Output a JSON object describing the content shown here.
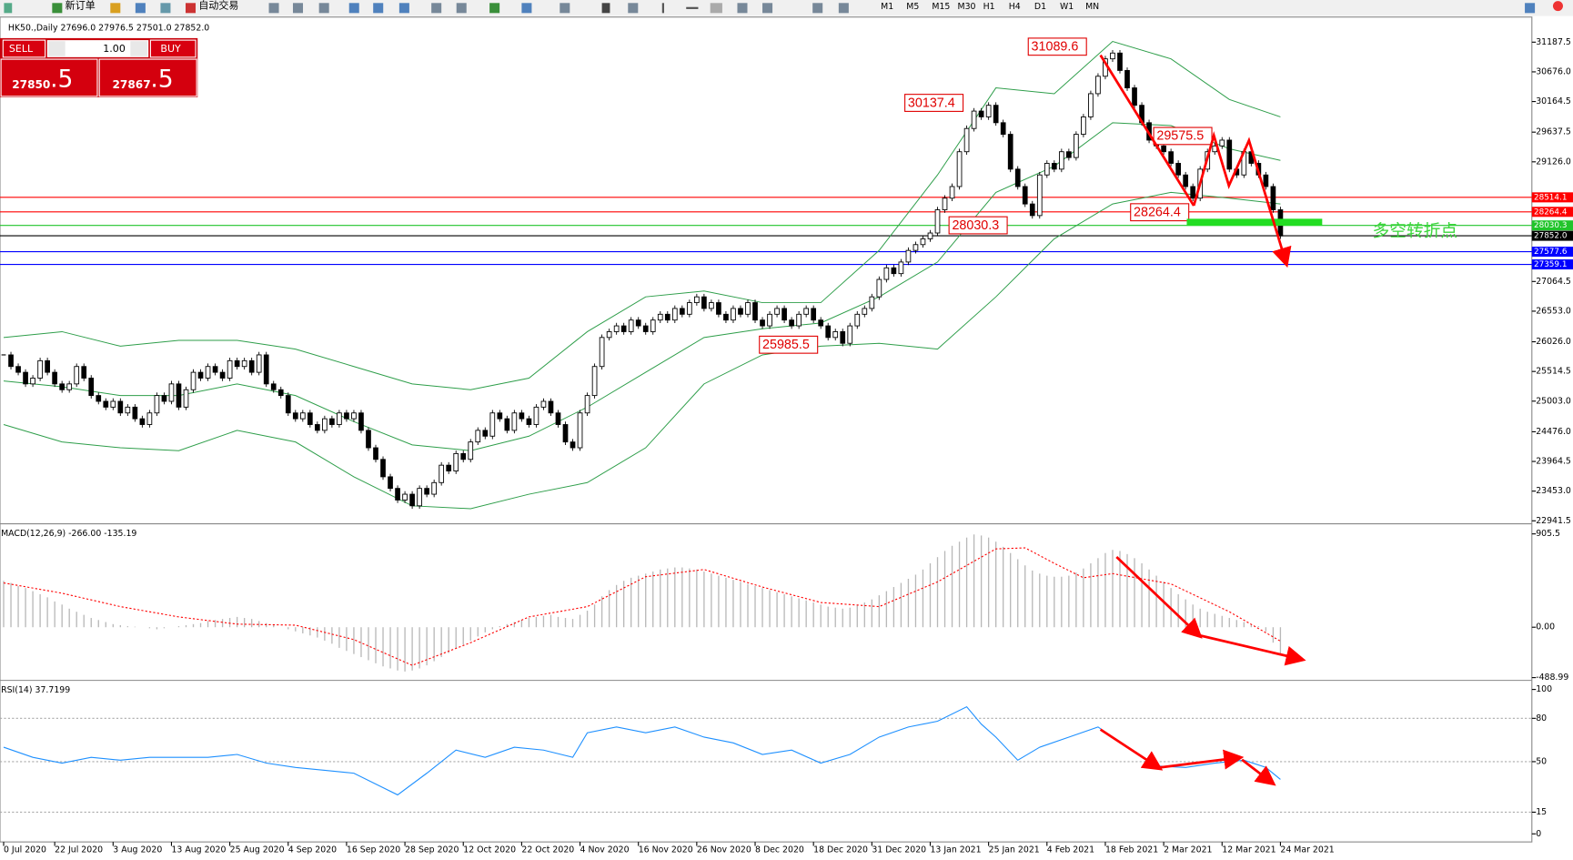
{
  "toolbar": {
    "buttons": [
      "新订单",
      "自动交易"
    ],
    "timeframes": [
      "M1",
      "M5",
      "M15",
      "M30",
      "H1",
      "H4",
      "D1",
      "W1",
      "MN"
    ]
  },
  "trade_panel": {
    "sell": "SELL",
    "lots": "1.00",
    "buy": "BUY",
    "sell_price_main": "27850",
    "sell_price_last": ".5",
    "buy_price_main": "27867",
    "buy_price_last": ".5"
  },
  "annotations": [
    "31089.6",
    "30137.4",
    "29575.5",
    "28264.4",
    "28030.3",
    "25985.5",
    "多空转折点"
  ],
  "chart_data": [
    {
      "type": "candlestick",
      "title": "HK50.,Daily 27696.0 27976.5 27501.0 27852.0",
      "values": [
        25800,
        25600,
        25500,
        25300,
        25400,
        25700,
        25500,
        25300,
        25200,
        25300,
        25600,
        25400,
        25100,
        25000,
        24900,
        25000,
        24800,
        24900,
        24700,
        24600,
        24800,
        25100,
        25000,
        25300,
        24900,
        25200,
        25500,
        25400,
        25600,
        25500,
        25400,
        25700,
        25600,
        25700,
        25500,
        25800,
        25300,
        25200,
        25100,
        24800,
        24700,
        24800,
        24600,
        24500,
        24700,
        24600,
        24800,
        24700,
        24800,
        24500,
        24200,
        24000,
        23700,
        23500,
        23300,
        23400,
        23200,
        23500,
        23400,
        23600,
        23900,
        23800,
        24100,
        24000,
        24300,
        24500,
        24400,
        24800,
        24700,
        24500,
        24800,
        24700,
        24600,
        24900,
        25000,
        24800,
        24600,
        24300,
        24200,
        24800,
        25100,
        25600,
        26100,
        26200,
        26300,
        26200,
        26400,
        26300,
        26200,
        26400,
        26500,
        26400,
        26600,
        26500,
        26700,
        26800,
        26600,
        26700,
        26500,
        26400,
        26600,
        26500,
        26700,
        26400,
        26300,
        26500,
        26600,
        26400,
        26300,
        26500,
        26600,
        26400,
        26300,
        26100,
        26200,
        26000,
        26300,
        26500,
        26600,
        26800,
        27100,
        27300,
        27200,
        27400,
        27600,
        27700,
        27800,
        27900,
        28300,
        28500,
        28700,
        29300,
        29700,
        30000,
        29900,
        30100,
        29800,
        29600,
        29000,
        28700,
        28400,
        28200,
        28900,
        29100,
        29000,
        29300,
        29200,
        29600,
        29900,
        30300,
        30600,
        30900,
        31000,
        30700,
        30400,
        30100,
        29800,
        29500,
        29400,
        29300,
        29100,
        28900,
        28700,
        28500,
        29000,
        29300,
        29400,
        29500,
        29000,
        28900,
        29300,
        29100,
        28900,
        28700,
        28300,
        27850
      ],
      "bands": {
        "x": [
          0,
          8,
          16,
          24,
          32,
          40,
          48,
          56,
          64,
          72,
          80,
          88,
          96,
          104,
          112,
          120,
          128,
          136,
          144,
          152,
          160,
          168,
          175
        ],
        "upper": [
          26100,
          26200,
          25950,
          26050,
          26050,
          25900,
          25600,
          25300,
          25200,
          25400,
          26200,
          26800,
          26900,
          26700,
          26700,
          27600,
          28900,
          30400,
          30300,
          31200,
          30900,
          30200,
          29900
        ],
        "middle": [
          25350,
          25250,
          25100,
          25100,
          25300,
          25100,
          24650,
          24250,
          24150,
          24400,
          24900,
          25500,
          26100,
          26250,
          26350,
          26800,
          27400,
          28600,
          29050,
          29800,
          29750,
          29350,
          29150
        ],
        "lower": [
          24600,
          24300,
          24200,
          24150,
          24500,
          24300,
          23700,
          23200,
          23150,
          23400,
          23600,
          24200,
          25300,
          25800,
          25950,
          26000,
          25900,
          26800,
          27800,
          28400,
          28600,
          28500,
          28400
        ],
        "color": "#2e9e4a"
      },
      "levels": [
        {
          "value": 28514.1,
          "label": "28514.1",
          "color": "#ff0000"
        },
        {
          "value": 28264.4,
          "label": "28264.4",
          "color": "#ff0000"
        },
        {
          "value": 28030.3,
          "label": "28030.3",
          "color": "#21c42b"
        },
        {
          "value": 27852.0,
          "label": "27852.0",
          "color": "#000000"
        },
        {
          "value": 27577.6,
          "label": "27577.6",
          "color": "#0000ff"
        },
        {
          "value": 27359.1,
          "label": "27359.1",
          "color": "#0000ff"
        }
      ],
      "xlim": [
        -0.5,
        175.5
      ],
      "ylim": [
        22907,
        31568
      ],
      "yticks": [
        31187.5,
        {
          "value": 30676.0,
          "label": "30676.0"
        },
        30164.5,
        29637.5,
        {
          "value": 29126.0,
          "label": "29126.0"
        },
        27064.5,
        {
          "value": 26553.0,
          "label": "26553.0"
        },
        {
          "value": 26026.0,
          "label": "26026.0"
        },
        25514.5,
        {
          "value": 25003.0,
          "label": "25003.0"
        },
        {
          "value": 24476.0,
          "label": "24476.0"
        },
        23964.5,
        {
          "value": 23453.0,
          "label": "23453.0"
        },
        22941.5
      ],
      "xticks": [
        {
          "value": 0,
          "label": "0 Jul 2020"
        },
        {
          "value": 7,
          "label": "22 Jul 2020"
        },
        {
          "value": 15,
          "label": "3 Aug 2020"
        },
        {
          "value": 23,
          "label": "13 Aug 2020"
        },
        {
          "value": 31,
          "label": "25 Aug 2020"
        },
        {
          "value": 39,
          "label": "4 Sep 2020"
        },
        {
          "value": 47,
          "label": "16 Sep 2020"
        },
        {
          "value": 55,
          "label": "28 Sep 2020"
        },
        {
          "value": 63,
          "label": "12 Oct 2020"
        },
        {
          "value": 71,
          "label": "22 Oct 2020"
        },
        {
          "value": 79,
          "label": "4 Nov 2020"
        },
        {
          "value": 87,
          "label": "16 Nov 2020"
        },
        {
          "value": 95,
          "label": "26 Nov 2020"
        },
        {
          "value": 103,
          "label": "8 Dec 2020"
        },
        {
          "value": 111,
          "label": "18 Dec 2020"
        },
        {
          "value": 119,
          "label": "31 Dec 2020"
        },
        {
          "value": 127,
          "label": "13 Jan 2021"
        },
        {
          "value": 135,
          "label": "25 Jan 2021"
        },
        {
          "value": 143,
          "label": "4 Feb 2021"
        },
        {
          "value": 151,
          "label": "18 Feb 2021"
        },
        {
          "value": 159,
          "label": "2 Mar 2021"
        },
        {
          "value": 167,
          "label": "12 Mar 2021"
        },
        {
          "value": 175,
          "label": "24 Mar 2021"
        }
      ]
    },
    {
      "type": "macd",
      "title": "MACD(12,26,9) -266.00 -135.19",
      "values": [
        450,
        430,
        400,
        380,
        350,
        320,
        290,
        250,
        220,
        180,
        150,
        120,
        90,
        70,
        50,
        30,
        20,
        10,
        5,
        0,
        -10,
        -20,
        -10,
        0,
        10,
        20,
        30,
        40,
        60,
        70,
        80,
        90,
        100,
        90,
        80,
        60,
        40,
        20,
        0,
        -20,
        -40,
        -60,
        -80,
        -100,
        -130,
        -160,
        -200,
        -230,
        -260,
        -290,
        -320,
        -350,
        -380,
        -400,
        -420,
        -430,
        -420,
        -400,
        -370,
        -330,
        -290,
        -250,
        -210,
        -170,
        -130,
        -90,
        -50,
        -20,
        10,
        30,
        50,
        70,
        90,
        100,
        110,
        120,
        100,
        90,
        80,
        120,
        160,
        220,
        300,
        360,
        410,
        450,
        480,
        500,
        520,
        540,
        560,
        570,
        580,
        580,
        570,
        560,
        540,
        520,
        500,
        480,
        460,
        440,
        420,
        400,
        380,
        360,
        340,
        320,
        300,
        280,
        260,
        240,
        220,
        200,
        190,
        180,
        190,
        210,
        240,
        270,
        310,
        350,
        390,
        430,
        470,
        510,
        560,
        620,
        680,
        740,
        790,
        830,
        870,
        900,
        890,
        870,
        830,
        780,
        720,
        660,
        600,
        550,
        520,
        500,
        490,
        490,
        500,
        530,
        570,
        620,
        670,
        720,
        750,
        740,
        710,
        670,
        620,
        560,
        500,
        440,
        380,
        320,
        270,
        220,
        180,
        150,
        130,
        110,
        90,
        70,
        50,
        30,
        10,
        -40,
        -150,
        -266
      ],
      "signal": {
        "x": [
          0,
          8,
          16,
          24,
          32,
          40,
          48,
          56,
          64,
          72,
          80,
          88,
          96,
          104,
          112,
          120,
          128,
          136,
          140,
          144,
          148,
          152,
          160,
          168,
          175
        ],
        "values": [
          430,
          330,
          200,
          100,
          30,
          20,
          -120,
          -370,
          -150,
          100,
          200,
          490,
          560,
          390,
          240,
          200,
          440,
          760,
          770,
          620,
          480,
          520,
          420,
          150,
          -135.19
        ],
        "color": "#ff0000"
      },
      "xlim": [
        -0.5,
        175.5
      ],
      "ylim": [
        -506,
        974
      ],
      "yticks": [
        905.5,
        {
          "value": 0,
          "label": "0.00"
        },
        -488.99
      ]
    },
    {
      "type": "line",
      "title": "RSI(14) 37.7199",
      "color": "#1e90ff",
      "x": [
        0,
        4,
        8,
        12,
        16,
        20,
        24,
        28,
        32,
        36,
        40,
        44,
        48,
        52,
        54,
        58,
        62,
        66,
        70,
        74,
        78,
        80,
        84,
        88,
        92,
        96,
        100,
        104,
        108,
        112,
        116,
        120,
        124,
        128,
        132,
        134,
        136,
        139,
        142,
        146,
        150,
        154,
        158,
        162,
        166,
        170,
        173,
        175
      ],
      "values": [
        60,
        53,
        49,
        53,
        51,
        53,
        53,
        53,
        55,
        49,
        46,
        44,
        42,
        32,
        27,
        42,
        58,
        53,
        60,
        58,
        53,
        70,
        74,
        70,
        74,
        67,
        63,
        55,
        58,
        49,
        55,
        67,
        74,
        78,
        88,
        76,
        67,
        51,
        60,
        67,
        74,
        60,
        47,
        46,
        49,
        51,
        46,
        37.7199
      ],
      "xlim": [
        -0.5,
        175.5
      ],
      "ylim": [
        -4.9,
        104.9
      ],
      "yticks": [
        100,
        80,
        50,
        15,
        0
      ],
      "grid_levels": [
        80,
        50,
        15
      ]
    }
  ]
}
